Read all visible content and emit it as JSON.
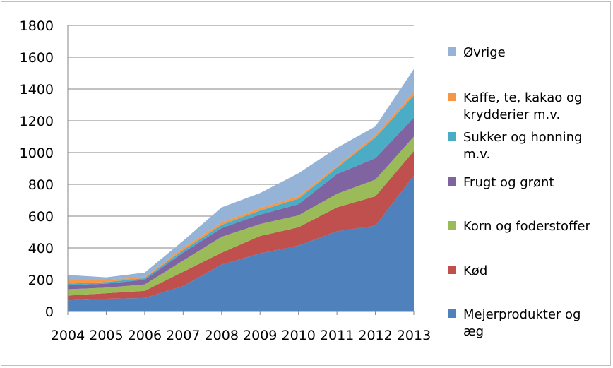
{
  "chart_data": {
    "type": "area",
    "stacked": true,
    "title": "",
    "xlabel": "",
    "ylabel": "",
    "ylim": [
      0,
      1800
    ],
    "yticks": [
      0,
      200,
      400,
      600,
      800,
      1000,
      1200,
      1400,
      1600,
      1800
    ],
    "grid": "horizontal",
    "legend_position": "right",
    "x": [
      "2004",
      "2005",
      "2006",
      "2007",
      "2008",
      "2009",
      "2010",
      "2011",
      "2012",
      "2013"
    ],
    "series": [
      {
        "name": "Mejerprodukter og æg",
        "color": "#4f81bd",
        "values": [
          70,
          80,
          85,
          160,
          295,
          365,
          415,
          505,
          540,
          855
        ]
      },
      {
        "name": "Kød",
        "color": "#c0504d",
        "values": [
          30,
          35,
          45,
          90,
          75,
          110,
          115,
          150,
          185,
          155
        ]
      },
      {
        "name": "Korn og foderstoffer",
        "color": "#9bbb59",
        "values": [
          40,
          35,
          40,
          70,
          100,
          75,
          75,
          85,
          105,
          90
        ]
      },
      {
        "name": "Frugt og grønt",
        "color": "#8064a2",
        "values": [
          25,
          25,
          30,
          50,
          55,
          60,
          70,
          125,
          135,
          120
        ]
      },
      {
        "name": "Sukker og honning m.v.",
        "color": "#4bacc6",
        "values": [
          10,
          10,
          10,
          15,
          20,
          25,
          35,
          40,
          130,
          140
        ]
      },
      {
        "name": "Kaffe, te, kakao og krydderier m.v.",
        "color": "#f79646",
        "values": [
          25,
          15,
          5,
          15,
          15,
          15,
          15,
          10,
          15,
          20
        ]
      },
      {
        "name": "Øvrige",
        "color": "#95b3d7",
        "values": [
          30,
          15,
          30,
          45,
          95,
          95,
          145,
          115,
          55,
          145
        ]
      }
    ]
  }
}
